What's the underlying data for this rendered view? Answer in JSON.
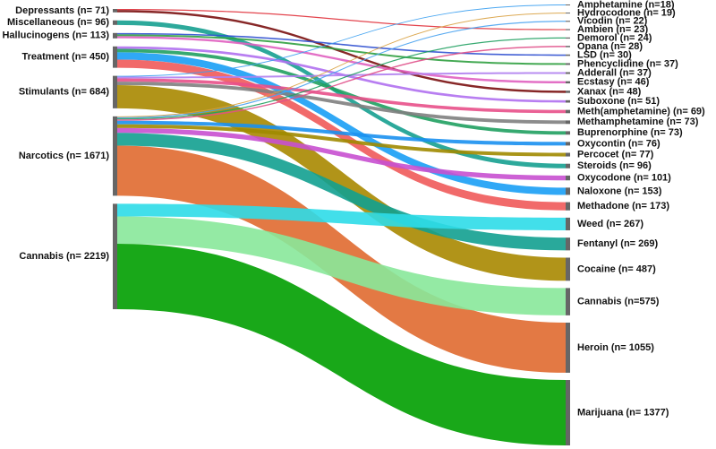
{
  "chart_data": {
    "type": "sankey",
    "node_color": "#666666",
    "left_nodes": [
      {
        "label": "Depressants (n= 71)"
      },
      {
        "label": "Miscellaneous (n= 96)"
      },
      {
        "label": "Hallucinogens (n= 113)"
      },
      {
        "label": "Treatment (n= 450)"
      },
      {
        "label": "Stimulants (n= 684)"
      },
      {
        "label": "Narcotics (n= 1671)"
      },
      {
        "label": "Cannabis (n= 2219)"
      }
    ],
    "right_nodes": [
      {
        "label": "Amphetamine (n=18)"
      },
      {
        "label": "Hydrocodone (n= 19)"
      },
      {
        "label": "Vicodin (n= 22)"
      },
      {
        "label": "Ambien (n= 23)"
      },
      {
        "label": "Demorol (n= 24)"
      },
      {
        "label": "Opana (n= 28)"
      },
      {
        "label": "LSD (n= 30)"
      },
      {
        "label": "Phencyclidine (n= 37)"
      },
      {
        "label": "Adderall (n= 37)"
      },
      {
        "label": "Ecstasy (n= 46)"
      },
      {
        "label": "Xanax (n= 48)"
      },
      {
        "label": "Suboxone (n= 51)"
      },
      {
        "label": "Meth(amphetamine) (n= 69)"
      },
      {
        "label": "Methamphetamine (n= 73)"
      },
      {
        "label": "Buprenorphine (n= 73)"
      },
      {
        "label": "Oxycontin (n= 76)"
      },
      {
        "label": "Percocet (n= 77)"
      },
      {
        "label": "Steroids (n= 96)"
      },
      {
        "label": "Oxycodone (n= 101)"
      },
      {
        "label": "Naloxone (n= 153)"
      },
      {
        "label": "Methadone (n= 173)"
      },
      {
        "label": "Weed (n= 267)"
      },
      {
        "label": "Fentanyl (n= 269)"
      },
      {
        "label": "Cocaine (n= 487)"
      },
      {
        "label": "Cannabis (n=575)"
      },
      {
        "label": "Heroin (n= 1055)"
      },
      {
        "label": "Marijuana (n= 1377)"
      }
    ],
    "links": [
      {
        "source": 0,
        "target": 3,
        "value": 23,
        "color": "#e0303a"
      },
      {
        "source": 0,
        "target": 10,
        "value": 48,
        "color": "#7a1010"
      },
      {
        "source": 1,
        "target": 17,
        "value": 96,
        "color": "#16a090"
      },
      {
        "source": 2,
        "target": 6,
        "value": 30,
        "color": "#3050d0"
      },
      {
        "source": 2,
        "target": 7,
        "value": 37,
        "color": "#30a040"
      },
      {
        "source": 2,
        "target": 9,
        "value": 46,
        "color": "#e060c0"
      },
      {
        "source": 3,
        "target": 11,
        "value": 51,
        "color": "#b070f0"
      },
      {
        "source": 3,
        "target": 14,
        "value": 73,
        "color": "#20a060"
      },
      {
        "source": 3,
        "target": 19,
        "value": 153,
        "color": "#1a9ef5"
      },
      {
        "source": 3,
        "target": 20,
        "value": 173,
        "color": "#f05a5a"
      },
      {
        "source": 4,
        "target": 0,
        "value": 18,
        "color": "#3a9ef0"
      },
      {
        "source": 4,
        "target": 8,
        "value": 37,
        "color": "#b080f0"
      },
      {
        "source": 4,
        "target": 12,
        "value": 69,
        "color": "#e8508a"
      },
      {
        "source": 4,
        "target": 13,
        "value": 73,
        "color": "#808080"
      },
      {
        "source": 4,
        "target": 23,
        "value": 487,
        "color": "#a88800"
      },
      {
        "source": 5,
        "target": 1,
        "value": 19,
        "color": "#d8a040"
      },
      {
        "source": 5,
        "target": 2,
        "value": 22,
        "color": "#4aa3f0"
      },
      {
        "source": 5,
        "target": 4,
        "value": 24,
        "color": "#20a060"
      },
      {
        "source": 5,
        "target": 5,
        "value": 28,
        "color": "#e0508a"
      },
      {
        "source": 5,
        "target": 15,
        "value": 76,
        "color": "#1a90f0"
      },
      {
        "source": 5,
        "target": 16,
        "value": 77,
        "color": "#a08a00"
      },
      {
        "source": 5,
        "target": 18,
        "value": 101,
        "color": "#c850d0"
      },
      {
        "source": 5,
        "target": 22,
        "value": 269,
        "color": "#12a090"
      },
      {
        "source": 5,
        "target": 25,
        "value": 1055,
        "color": "#e06a30"
      },
      {
        "source": 6,
        "target": 21,
        "value": 267,
        "color": "#2ddbe8"
      },
      {
        "source": 6,
        "target": 24,
        "value": 575,
        "color": "#88e89a"
      },
      {
        "source": 6,
        "target": 26,
        "value": 1377,
        "color": "#009e00"
      }
    ]
  }
}
